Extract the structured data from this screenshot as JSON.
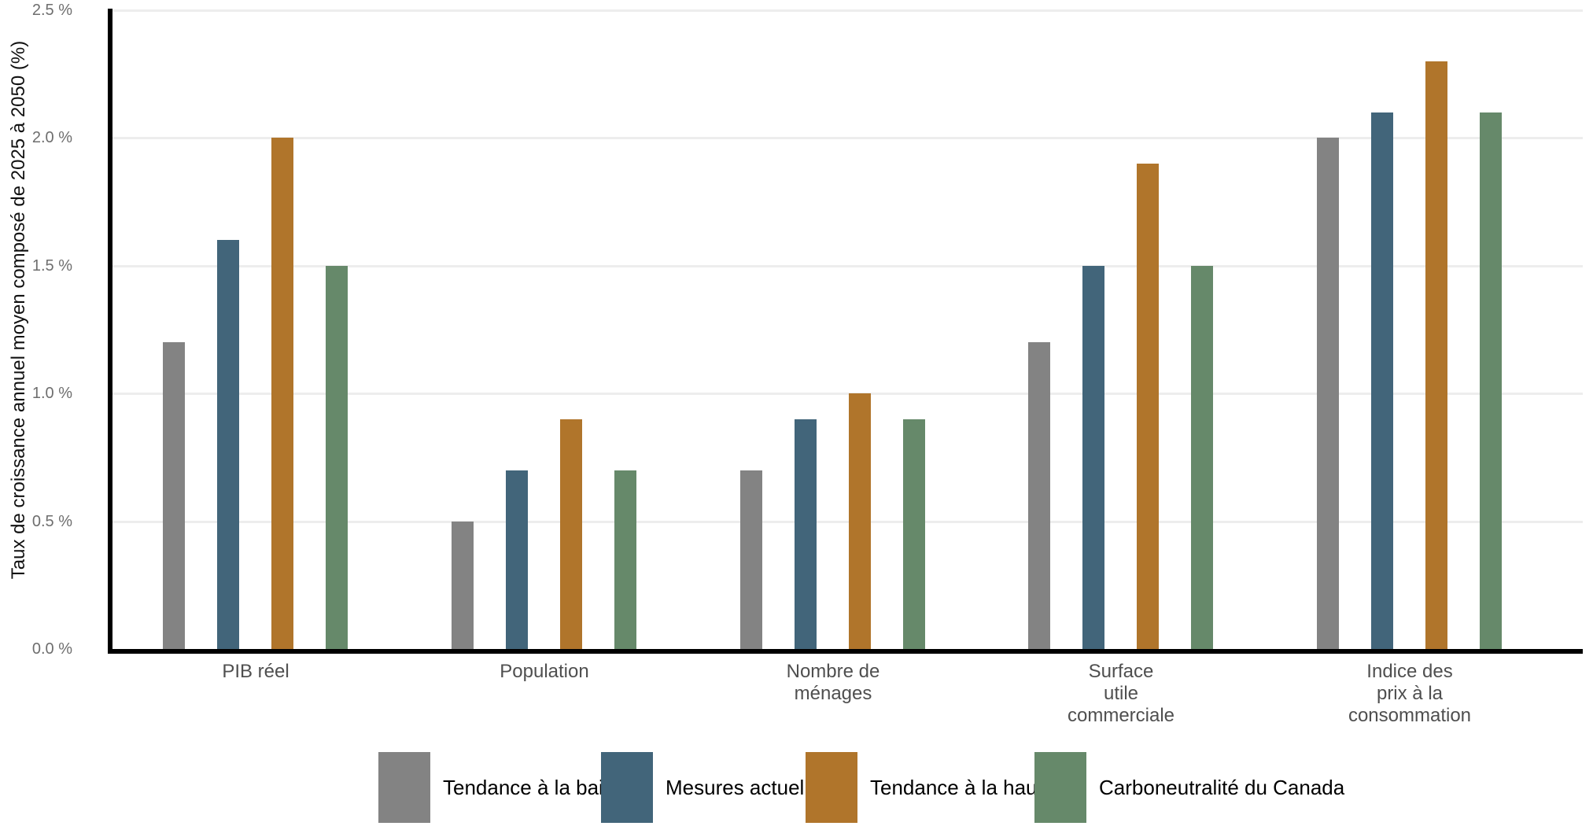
{
  "chart_data": {
    "type": "bar",
    "title": "",
    "ylabel": "Taux de croissance annuel moyen composé de 2025 à 2050 (%)",
    "xlabel": "",
    "ylim": [
      0,
      2.5
    ],
    "grid": "horizontal",
    "legend_position": "bottom",
    "yticks": [
      {
        "value": 0.0,
        "label": "0.0 %"
      },
      {
        "value": 0.5,
        "label": "0.5 %"
      },
      {
        "value": 1.0,
        "label": "1.0 %"
      },
      {
        "value": 1.5,
        "label": "1.5 %"
      },
      {
        "value": 2.0,
        "label": "2.0 %"
      },
      {
        "value": 2.5,
        "label": "2.5 %"
      }
    ],
    "categories": [
      "PIB réel",
      "Population",
      "Nombre de\nménages",
      "Surface\nutile\ncommerciale",
      "Indice des\nprix à la\nconsommation"
    ],
    "series": [
      {
        "name": "Tendance à la baisse",
        "color": "#838383",
        "values": [
          1.2,
          0.5,
          0.7,
          1.2,
          2.0
        ]
      },
      {
        "name": "Mesures actuelles",
        "color": "#42657a",
        "values": [
          1.6,
          0.7,
          0.9,
          1.5,
          2.1
        ]
      },
      {
        "name": "Tendance à la hausse",
        "color": "#b0752b",
        "values": [
          2.0,
          0.9,
          1.0,
          1.9,
          2.3
        ]
      },
      {
        "name": "Carboneutralité du Canada",
        "color": "#66896a",
        "values": [
          1.5,
          0.7,
          0.9,
          1.5,
          2.1
        ]
      }
    ]
  }
}
